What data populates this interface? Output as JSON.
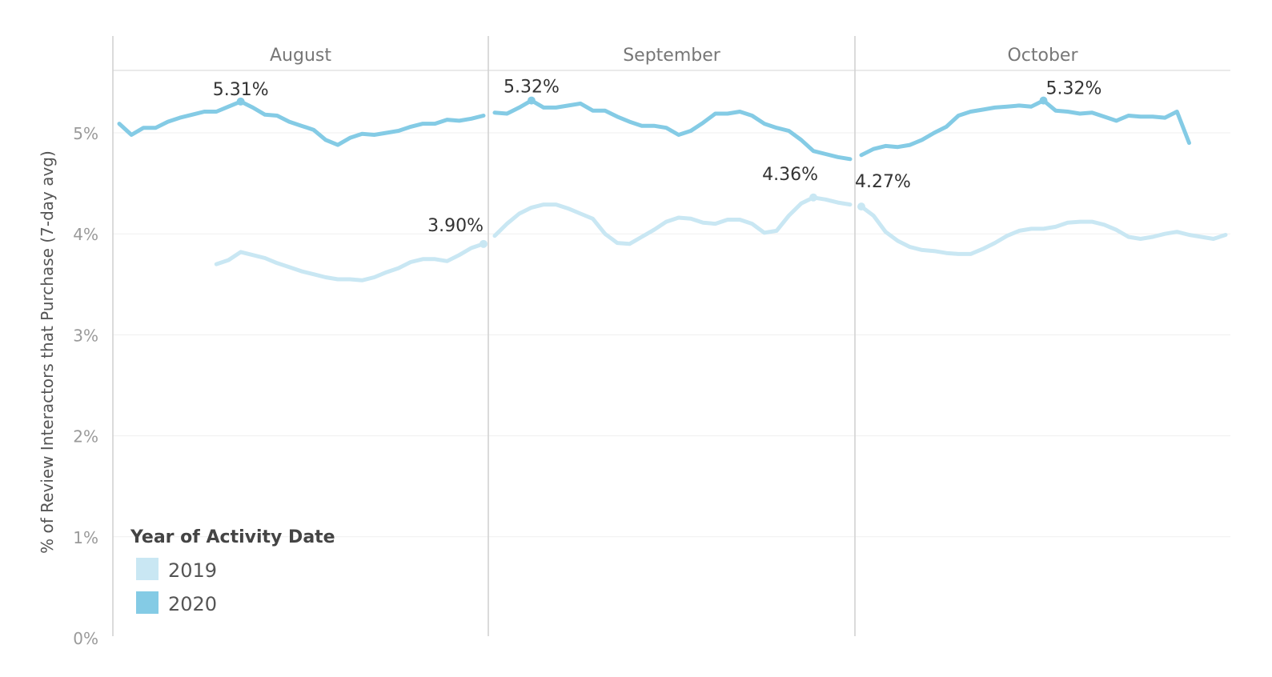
{
  "chart_data": {
    "type": "line",
    "ylabel": "% of Review Interactors that Purchase (7-day avg)",
    "ylim": [
      0,
      5.9
    ],
    "yticks": [
      "0%",
      "1%",
      "2%",
      "3%",
      "4%",
      "5%"
    ],
    "grid": true,
    "panels": [
      {
        "month": "August",
        "days": 31
      },
      {
        "month": "September",
        "days": 30
      },
      {
        "month": "October",
        "days": 31
      }
    ],
    "legend": {
      "title": "Year of Activity Date",
      "position": "bottom-left",
      "entries": [
        {
          "name": "2019",
          "color": "#c9e7f3"
        },
        {
          "name": "2020",
          "color": "#84cbe5"
        }
      ]
    },
    "series": [
      {
        "name": "2019",
        "color": "#c9e7f3",
        "months": [
          {
            "start_day": 9,
            "values": [
              3.7,
              3.74,
              3.82,
              3.79,
              3.76,
              3.71,
              3.67,
              3.63,
              3.6,
              3.57,
              3.55,
              3.55,
              3.54,
              3.57,
              3.62,
              3.66,
              3.72,
              3.75,
              3.75,
              3.73,
              3.79,
              3.86,
              3.9
            ]
          },
          {
            "start_day": 1,
            "values": [
              3.98,
              4.1,
              4.2,
              4.26,
              4.29,
              4.29,
              4.25,
              4.2,
              4.15,
              4.0,
              3.91,
              3.9,
              3.97,
              4.04,
              4.12,
              4.16,
              4.15,
              4.11,
              4.1,
              4.14,
              4.14,
              4.1,
              4.01,
              4.03,
              4.18,
              4.3,
              4.36,
              4.34,
              4.31,
              4.29
            ]
          },
          {
            "start_day": 1,
            "values": [
              4.27,
              4.18,
              4.02,
              3.93,
              3.87,
              3.84,
              3.83,
              3.81,
              3.8,
              3.8,
              3.85,
              3.91,
              3.98,
              4.03,
              4.05,
              4.05,
              4.07,
              4.11,
              4.12,
              4.12,
              4.09,
              4.04,
              3.97,
              3.95,
              3.97,
              4.0,
              4.02,
              3.99,
              3.97,
              3.95,
              3.99
            ]
          }
        ]
      },
      {
        "name": "2020",
        "color": "#84cbe5",
        "months": [
          {
            "start_day": 1,
            "values": [
              5.09,
              4.98,
              5.05,
              5.05,
              5.11,
              5.15,
              5.18,
              5.21,
              5.21,
              5.26,
              5.31,
              5.25,
              5.18,
              5.17,
              5.11,
              5.07,
              5.03,
              4.93,
              4.88,
              4.95,
              4.99,
              4.98,
              5.0,
              5.02,
              5.06,
              5.09,
              5.09,
              5.13,
              5.12,
              5.14,
              5.17
            ]
          },
          {
            "start_day": 1,
            "values": [
              5.2,
              5.19,
              5.25,
              5.32,
              5.25,
              5.25,
              5.27,
              5.29,
              5.22,
              5.22,
              5.16,
              5.11,
              5.07,
              5.07,
              5.05,
              4.98,
              5.02,
              5.1,
              5.19,
              5.19,
              5.21,
              5.17,
              5.09,
              5.05,
              5.02,
              4.93,
              4.82,
              4.79,
              4.76,
              4.74
            ]
          },
          {
            "start_day": 1,
            "values": [
              4.78,
              4.84,
              4.87,
              4.86,
              4.88,
              4.93,
              5.0,
              5.06,
              5.17,
              5.21,
              5.23,
              5.25,
              5.26,
              5.27,
              5.26,
              5.32,
              5.22,
              5.21,
              5.19,
              5.2,
              5.16,
              5.12,
              5.17,
              5.16,
              5.16,
              5.15,
              5.21,
              4.9
            ]
          }
        ]
      }
    ],
    "annotations": [
      {
        "text": "5.31%",
        "series": 1,
        "panel": 0,
        "day": 11
      },
      {
        "text": "3.90%",
        "series": 0,
        "panel": 0,
        "day": 31
      },
      {
        "text": "5.32%",
        "series": 1,
        "panel": 1,
        "day": 4
      },
      {
        "text": "4.36%",
        "series": 0,
        "panel": 1,
        "day": 27
      },
      {
        "text": "4.27%",
        "series": 0,
        "panel": 2,
        "day": 1
      },
      {
        "text": "5.32%",
        "series": 1,
        "panel": 2,
        "day": 16
      }
    ]
  }
}
